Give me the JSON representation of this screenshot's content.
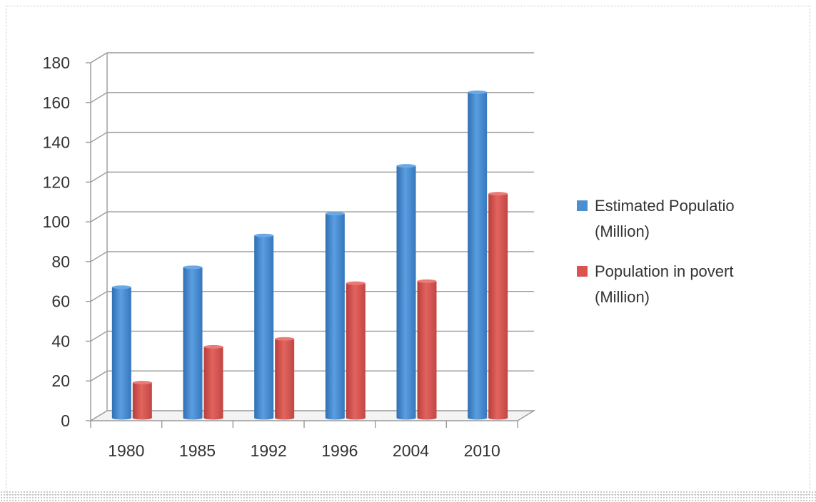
{
  "chart_data": {
    "type": "bar",
    "categories": [
      "1980",
      "1985",
      "1992",
      "1996",
      "2004",
      "2010"
    ],
    "series": [
      {
        "name": "Estimated Population (Million)",
        "color": "#4a8fd1",
        "values": [
          65,
          75,
          91,
          102,
          126,
          163
        ]
      },
      {
        "name": "Population in poverty (Million)",
        "color": "#d9534f",
        "values": [
          17,
          35,
          39,
          67,
          68,
          112
        ]
      }
    ],
    "legend_display": [
      [
        "Estimated Populatio",
        "(Million)"
      ],
      [
        "Population in povert",
        "(Million)"
      ]
    ],
    "yticks": [
      "0",
      "20",
      "40",
      "60",
      "80",
      "100",
      "120",
      "140",
      "160",
      "180"
    ],
    "ylim": [
      0,
      180
    ],
    "grid": true,
    "legend_position": "right",
    "title": "",
    "xlabel": "",
    "ylabel": ""
  }
}
